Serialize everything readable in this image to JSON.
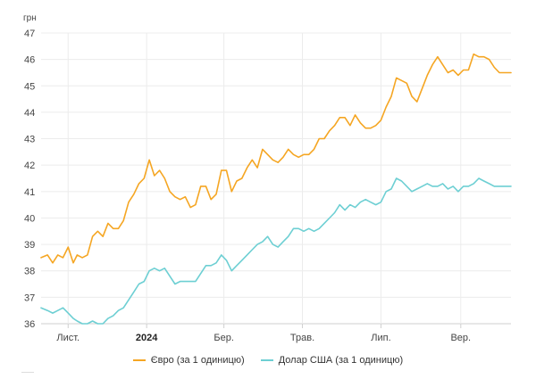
{
  "chart_data": {
    "type": "line",
    "unit": "грн",
    "ylim": [
      36,
      47
    ],
    "y_ticks": [
      "36",
      "37",
      "38",
      "39",
      "40",
      "41",
      "42",
      "43",
      "44",
      "45",
      "46",
      "47"
    ],
    "x_tick_labels": [
      {
        "label": "Лист.",
        "bold": false
      },
      {
        "label": "2024",
        "bold": true
      },
      {
        "label": "Бер.",
        "bold": false
      },
      {
        "label": "Трав.",
        "bold": false
      },
      {
        "label": "Лип.",
        "bold": false
      },
      {
        "label": "Вер.",
        "bold": false
      }
    ],
    "x_tick_dates": [
      "2023-11-01",
      "2024-01-01",
      "2024-03-01",
      "2024-05-01",
      "2024-07-01",
      "2024-09-01"
    ],
    "x_range": [
      "2023-10-11",
      "2024-10-10"
    ],
    "grid": true,
    "legend_position": "bottom",
    "series": [
      {
        "name": "Євро (за 1 одиницю)",
        "color": "#f5a623",
        "x": [
          "2023-10-11",
          "2023-10-16",
          "2023-10-20",
          "2023-10-24",
          "2023-10-28",
          "2023-11-01",
          "2023-11-05",
          "2023-11-08",
          "2023-11-12",
          "2023-11-16",
          "2023-11-20",
          "2023-11-24",
          "2023-11-28",
          "2023-12-02",
          "2023-12-06",
          "2023-12-10",
          "2023-12-14",
          "2023-12-18",
          "2023-12-22",
          "2023-12-26",
          "2023-12-30",
          "2024-01-03",
          "2024-01-07",
          "2024-01-11",
          "2024-01-15",
          "2024-01-19",
          "2024-01-23",
          "2024-01-27",
          "2024-01-31",
          "2024-02-04",
          "2024-02-08",
          "2024-02-12",
          "2024-02-16",
          "2024-02-20",
          "2024-02-24",
          "2024-02-28",
          "2024-03-03",
          "2024-03-07",
          "2024-03-11",
          "2024-03-15",
          "2024-03-19",
          "2024-03-23",
          "2024-03-27",
          "2024-03-31",
          "2024-04-04",
          "2024-04-08",
          "2024-04-12",
          "2024-04-16",
          "2024-04-20",
          "2024-04-24",
          "2024-04-28",
          "2024-05-02",
          "2024-05-06",
          "2024-05-10",
          "2024-05-14",
          "2024-05-18",
          "2024-05-22",
          "2024-05-26",
          "2024-05-30",
          "2024-06-03",
          "2024-06-07",
          "2024-06-11",
          "2024-06-15",
          "2024-06-19",
          "2024-06-23",
          "2024-06-27",
          "2024-07-01",
          "2024-07-05",
          "2024-07-09",
          "2024-07-13",
          "2024-07-17",
          "2024-07-21",
          "2024-07-25",
          "2024-07-29",
          "2024-08-02",
          "2024-08-06",
          "2024-08-10",
          "2024-08-14",
          "2024-08-18",
          "2024-08-22",
          "2024-08-26",
          "2024-08-30",
          "2024-09-03",
          "2024-09-07",
          "2024-09-11",
          "2024-09-15",
          "2024-09-19",
          "2024-09-23",
          "2024-09-27",
          "2024-10-01",
          "2024-10-05",
          "2024-10-10"
        ],
        "values": [
          38.5,
          38.6,
          38.3,
          38.6,
          38.5,
          38.9,
          38.3,
          38.6,
          38.5,
          38.6,
          39.3,
          39.5,
          39.3,
          39.8,
          39.6,
          39.6,
          39.9,
          40.6,
          40.9,
          41.3,
          41.5,
          42.2,
          41.6,
          41.8,
          41.5,
          41.0,
          40.8,
          40.7,
          40.8,
          40.4,
          40.5,
          41.2,
          41.2,
          40.7,
          40.9,
          41.8,
          41.8,
          41.0,
          41.4,
          41.5,
          41.9,
          42.2,
          41.9,
          42.6,
          42.4,
          42.2,
          42.1,
          42.3,
          42.6,
          42.4,
          42.3,
          42.4,
          42.4,
          42.6,
          43.0,
          43.0,
          43.3,
          43.5,
          43.8,
          43.8,
          43.5,
          43.9,
          43.6,
          43.4,
          43.4,
          43.5,
          43.7,
          44.2,
          44.6,
          45.3,
          45.2,
          45.1,
          44.6,
          44.4,
          44.9,
          45.4,
          45.8,
          46.1,
          45.8,
          45.5,
          45.6,
          45.4,
          45.6,
          45.6,
          46.2,
          46.1,
          46.1,
          46.0,
          45.7,
          45.5,
          45.5,
          45.5
        ]
      },
      {
        "name": "Долар США (за 1 одиницю)",
        "color": "#6dcfd3",
        "x": [
          "2023-10-11",
          "2023-10-16",
          "2023-10-20",
          "2023-10-24",
          "2023-10-28",
          "2023-11-01",
          "2023-11-05",
          "2023-11-08",
          "2023-11-12",
          "2023-11-16",
          "2023-11-20",
          "2023-11-24",
          "2023-11-28",
          "2023-12-02",
          "2023-12-06",
          "2023-12-10",
          "2023-12-14",
          "2023-12-18",
          "2023-12-22",
          "2023-12-26",
          "2023-12-30",
          "2024-01-03",
          "2024-01-07",
          "2024-01-11",
          "2024-01-15",
          "2024-01-19",
          "2024-01-23",
          "2024-01-27",
          "2024-01-31",
          "2024-02-04",
          "2024-02-08",
          "2024-02-12",
          "2024-02-16",
          "2024-02-20",
          "2024-02-24",
          "2024-02-28",
          "2024-03-03",
          "2024-03-07",
          "2024-03-11",
          "2024-03-15",
          "2024-03-19",
          "2024-03-23",
          "2024-03-27",
          "2024-03-31",
          "2024-04-04",
          "2024-04-08",
          "2024-04-12",
          "2024-04-16",
          "2024-04-20",
          "2024-04-24",
          "2024-04-28",
          "2024-05-02",
          "2024-05-06",
          "2024-05-10",
          "2024-05-14",
          "2024-05-18",
          "2024-05-22",
          "2024-05-26",
          "2024-05-30",
          "2024-06-03",
          "2024-06-07",
          "2024-06-11",
          "2024-06-15",
          "2024-06-19",
          "2024-06-23",
          "2024-06-27",
          "2024-07-01",
          "2024-07-05",
          "2024-07-09",
          "2024-07-13",
          "2024-07-17",
          "2024-07-21",
          "2024-07-25",
          "2024-07-29",
          "2024-08-02",
          "2024-08-06",
          "2024-08-10",
          "2024-08-14",
          "2024-08-18",
          "2024-08-22",
          "2024-08-26",
          "2024-08-30",
          "2024-09-03",
          "2024-09-07",
          "2024-09-11",
          "2024-09-15",
          "2024-09-19",
          "2024-09-23",
          "2024-09-27",
          "2024-10-01",
          "2024-10-05",
          "2024-10-10"
        ],
        "values": [
          36.6,
          36.5,
          36.4,
          36.5,
          36.6,
          36.4,
          36.2,
          36.1,
          36.0,
          36.0,
          36.1,
          36.0,
          36.0,
          36.2,
          36.3,
          36.5,
          36.6,
          36.9,
          37.2,
          37.5,
          37.6,
          38.0,
          38.1,
          38.0,
          38.1,
          37.8,
          37.5,
          37.6,
          37.6,
          37.6,
          37.6,
          37.9,
          38.2,
          38.2,
          38.3,
          38.6,
          38.4,
          38.0,
          38.2,
          38.4,
          38.6,
          38.8,
          39.0,
          39.1,
          39.3,
          39.0,
          38.9,
          39.1,
          39.3,
          39.6,
          39.6,
          39.5,
          39.6,
          39.5,
          39.6,
          39.8,
          40.0,
          40.2,
          40.5,
          40.3,
          40.5,
          40.4,
          40.6,
          40.7,
          40.6,
          40.5,
          40.6,
          41.0,
          41.1,
          41.5,
          41.4,
          41.2,
          41.0,
          41.1,
          41.2,
          41.3,
          41.2,
          41.2,
          41.3,
          41.1,
          41.2,
          41.0,
          41.2,
          41.2,
          41.3,
          41.5,
          41.4,
          41.3,
          41.2,
          41.2,
          41.2,
          41.2
        ]
      }
    ]
  }
}
